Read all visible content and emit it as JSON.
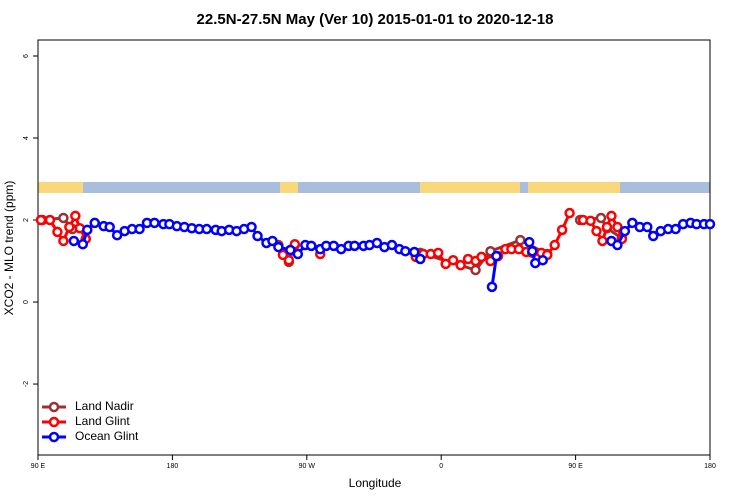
{
  "chart_data": {
    "type": "line",
    "title": "22.5N-27.5N May (Ver 10)   2015-01-01 to 2020-12-18",
    "x_label": "Longitude",
    "y_label": "XCO2 - MLO trend (ppm)",
    "xlim": [
      90,
      540
    ],
    "ylim": [
      -3.73,
      6.39
    ],
    "xticks": [
      {
        "value": 90,
        "label": "90 E"
      },
      180,
      {
        "value": 270,
        "label": "90 W"
      },
      {
        "value": 360,
        "label": "0"
      },
      {
        "value": 450,
        "label": "90 E"
      },
      {
        "value": 540,
        "label": "180"
      }
    ],
    "yticks": [
      -2,
      0,
      2,
      4,
      6
    ],
    "legend": "bottom-left",
    "series": [
      {
        "name": "Land Nadir",
        "color": "#993333",
        "x": [
          93,
          107,
          113,
          150,
          251,
          256,
          258,
          262,
          300,
          346,
          383,
          393,
          413,
          431,
          440,
          453,
          467,
          471,
          481
        ],
        "values": [
          2.0,
          2.05,
          1.78,
          null,
          1.39,
          1.15,
          0.98,
          1.39,
          null,
          1.2,
          0.78,
          1.24,
          1.51,
          1.17,
          null,
          2.0,
          2.05,
          1.8,
          1.56
        ]
      },
      {
        "name": "Land Glint",
        "color": "#ff0000",
        "x": [
          92,
          98,
          103,
          107,
          111,
          115,
          118,
          122,
          200,
          254,
          258,
          262,
          270,
          279,
          300,
          343,
          348,
          353,
          358,
          363,
          368,
          373,
          378,
          383,
          387,
          393,
          398,
          403,
          407,
          412,
          417,
          421,
          427,
          431,
          436,
          441,
          446,
          450,
          455,
          460,
          464,
          468,
          471,
          474,
          478,
          481
        ],
        "values": [
          2.0,
          2.0,
          1.71,
          1.49,
          1.83,
          2.1,
          1.8,
          1.54,
          null,
          1.15,
          1.02,
          1.41,
          null,
          1.17,
          null,
          1.1,
          1.17,
          1.17,
          1.2,
          0.93,
          1.02,
          0.9,
          1.05,
          1.0,
          1.1,
          1.0,
          1.12,
          1.29,
          1.29,
          1.29,
          1.22,
          1.2,
          1.2,
          1.15,
          1.39,
          1.76,
          2.17,
          null,
          2.0,
          1.98,
          1.73,
          1.49,
          1.83,
          2.1,
          1.83,
          1.54
        ]
      },
      {
        "name": "Ocean Glint",
        "color": "#0000ff",
        "x": [
          114,
          120,
          123,
          128,
          134,
          138,
          143,
          148,
          153,
          158,
          163,
          168,
          174,
          178,
          183,
          188,
          193,
          198,
          203,
          209,
          213,
          218,
          223,
          228,
          233,
          237,
          243,
          247,
          251,
          259,
          264,
          269,
          273,
          279,
          283,
          288,
          293,
          298,
          302,
          308,
          312,
          317,
          322,
          327,
          332,
          336,
          342,
          346,
          370,
          394,
          397,
          410,
          419,
          421,
          423,
          428,
          450,
          474,
          478,
          483,
          488,
          493,
          498,
          502,
          507,
          512,
          517,
          522,
          527,
          531,
          536,
          540
        ],
        "values": [
          1.49,
          1.41,
          1.76,
          1.93,
          1.85,
          1.83,
          1.63,
          1.73,
          1.78,
          1.78,
          1.93,
          1.93,
          1.9,
          1.9,
          1.85,
          1.83,
          1.8,
          1.78,
          1.78,
          1.76,
          1.73,
          1.76,
          1.73,
          1.78,
          1.83,
          1.61,
          1.44,
          1.49,
          1.34,
          1.27,
          1.17,
          1.39,
          1.37,
          1.29,
          1.37,
          1.37,
          1.29,
          1.37,
          1.37,
          1.37,
          1.39,
          1.44,
          1.34,
          1.39,
          1.29,
          1.24,
          1.22,
          1.05,
          null,
          0.37,
          1.12,
          null,
          1.46,
          1.24,
          0.95,
          1.02,
          null,
          1.49,
          1.39,
          1.73,
          1.93,
          1.83,
          1.83,
          1.61,
          1.73,
          1.78,
          1.78,
          1.9,
          1.93,
          1.9,
          1.9,
          1.9
        ]
      }
    ]
  }
}
